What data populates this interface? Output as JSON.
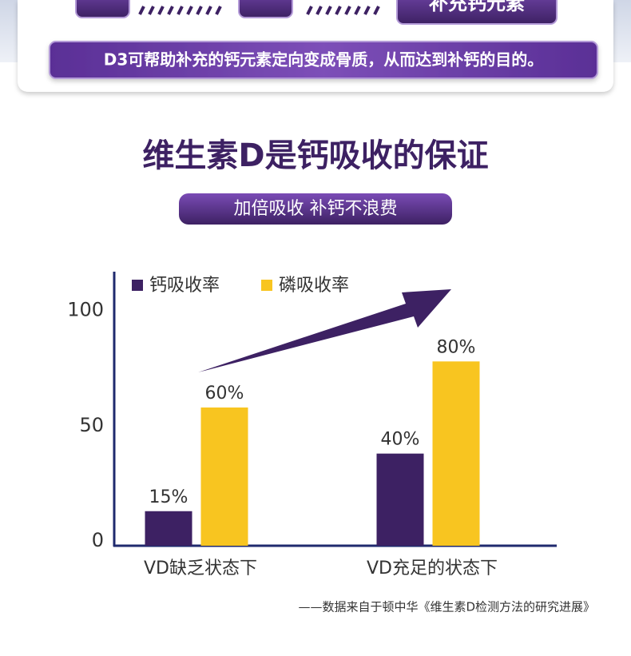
{
  "header": {
    "button": "补充钙元素",
    "note": "D3可帮助补充的钙元素定向变成骨质，从而达到补钙的目的。"
  },
  "chart_data": {
    "type": "bar",
    "title": "维生素D是钙吸收的保证",
    "subtitle": "加倍吸收 补钙不浪费",
    "categories": [
      "VD缺乏状态下",
      "VD充足的状态下"
    ],
    "series": [
      {
        "name": "钙吸收率",
        "color": "#3d2163",
        "values": [
          15,
          40
        ],
        "value_labels": [
          "15%",
          "40%"
        ]
      },
      {
        "name": "磷吸收率",
        "color": "#f8c520",
        "values": [
          60,
          80
        ],
        "value_labels": [
          "60%",
          "80%"
        ]
      }
    ],
    "ylim": [
      0,
      120
    ],
    "yticks": [
      0,
      50,
      100
    ],
    "grid": false,
    "legend": "top-left"
  },
  "source": "——数据来自于顿中华《维生素D检测方法的研究进展》"
}
